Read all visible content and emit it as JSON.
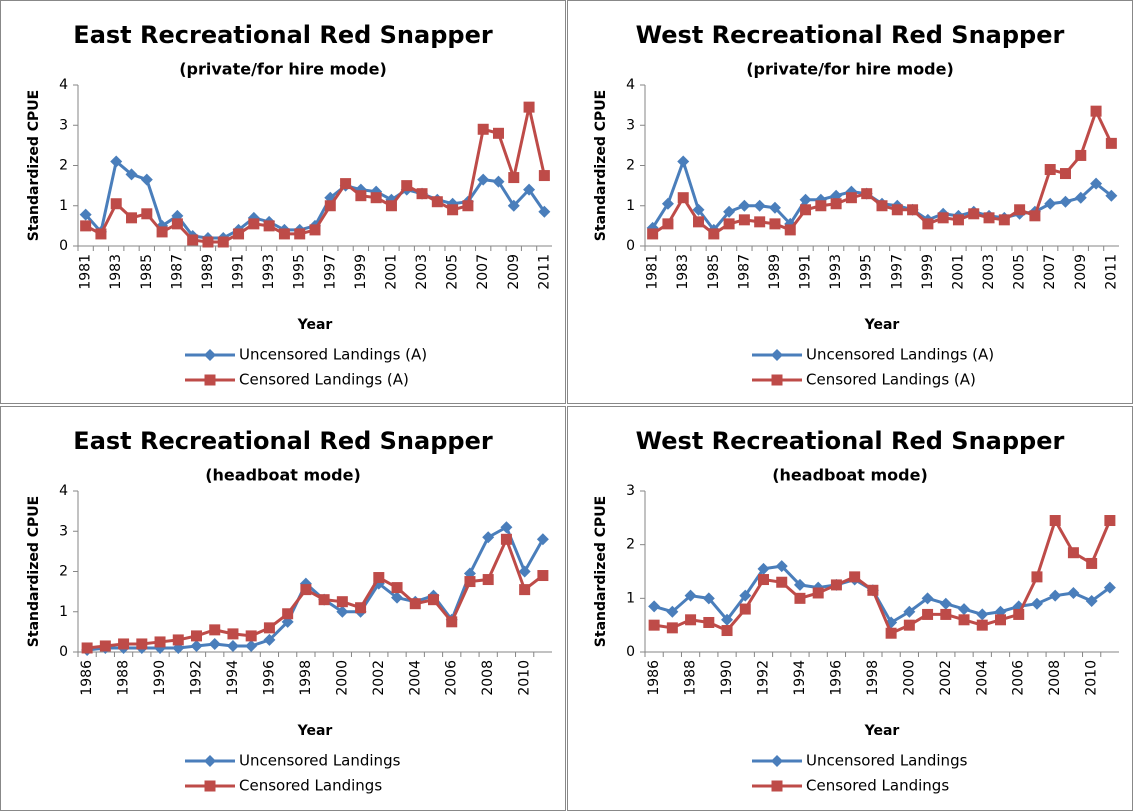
{
  "chart_data": [
    {
      "type": "line",
      "title": "East Recreational Red Snapper",
      "subtitle": "(private/for hire mode)",
      "y_label": "Standardized CPUE",
      "x_label": "Year",
      "categories": [
        "1981",
        null,
        "1983",
        null,
        "1985",
        null,
        "1987",
        null,
        "1989",
        null,
        "1991",
        null,
        "1993",
        null,
        "1995",
        null,
        "1997",
        null,
        "1999",
        null,
        "2001",
        null,
        "2003",
        null,
        "2005",
        null,
        "2007",
        null,
        "2009",
        null,
        "2011"
      ],
      "ylim": [
        0,
        4
      ],
      "yticks": [
        0,
        1,
        2,
        3,
        4
      ],
      "series": [
        {
          "name": "Uncensored Landings (A)",
          "color": "#4a7ebb",
          "marker": "diamond",
          "values": [
            0.78,
            0.35,
            2.1,
            1.78,
            1.65,
            0.5,
            0.75,
            0.25,
            0.2,
            0.2,
            0.4,
            0.7,
            0.6,
            0.4,
            0.4,
            0.5,
            1.2,
            1.5,
            1.4,
            1.35,
            1.15,
            1.4,
            1.3,
            1.15,
            1.05,
            1.1,
            1.65,
            1.6,
            1.0,
            1.4,
            0.85
          ]
        },
        {
          "name": "Censored Landings (A)",
          "color": "#be4b48",
          "marker": "square",
          "values": [
            0.5,
            0.3,
            1.05,
            0.7,
            0.8,
            0.35,
            0.55,
            0.15,
            0.1,
            0.1,
            0.3,
            0.55,
            0.5,
            0.3,
            0.3,
            0.4,
            1.0,
            1.55,
            1.25,
            1.2,
            1.0,
            1.5,
            1.3,
            1.1,
            0.9,
            1.0,
            2.9,
            2.8,
            1.7,
            3.45,
            1.75
          ]
        }
      ]
    },
    {
      "type": "line",
      "title": "West Recreational Red Snapper",
      "subtitle": "(private/for hire mode)",
      "y_label": "Standardized CPUE",
      "x_label": "Year",
      "categories": [
        "1981",
        null,
        "1983",
        null,
        "1985",
        null,
        "1987",
        null,
        "1989",
        null,
        "1991",
        null,
        "1993",
        null,
        "1995",
        null,
        "1997",
        null,
        "1999",
        null,
        "2001",
        null,
        "2003",
        null,
        "2005",
        null,
        "2007",
        null,
        "2009",
        null,
        "2011"
      ],
      "ylim": [
        0,
        4
      ],
      "yticks": [
        0,
        1,
        2,
        3,
        4
      ],
      "series": [
        {
          "name": "Uncensored Landings (A)",
          "color": "#4a7ebb",
          "marker": "diamond",
          "values": [
            0.45,
            1.05,
            2.1,
            0.9,
            0.4,
            0.85,
            1.0,
            1.0,
            0.95,
            0.55,
            1.15,
            1.15,
            1.25,
            1.35,
            1.3,
            1.05,
            1.0,
            0.9,
            0.65,
            0.8,
            0.75,
            0.85,
            0.75,
            0.7,
            0.8,
            0.85,
            1.05,
            1.1,
            1.2,
            1.55,
            1.25
          ]
        },
        {
          "name": "Censored Landings (A)",
          "color": "#be4b48",
          "marker": "square",
          "values": [
            0.3,
            0.55,
            1.2,
            0.6,
            0.3,
            0.55,
            0.65,
            0.6,
            0.55,
            0.4,
            0.9,
            1.0,
            1.05,
            1.2,
            1.3,
            1.0,
            0.9,
            0.9,
            0.55,
            0.7,
            0.65,
            0.8,
            0.7,
            0.65,
            0.9,
            0.75,
            1.9,
            1.8,
            2.25,
            3.35,
            2.55
          ]
        }
      ]
    },
    {
      "type": "line",
      "title": "East Recreational Red Snapper",
      "subtitle": "(headboat mode)",
      "y_label": "Standardized CPUE",
      "x_label": "Year",
      "categories": [
        "1986",
        null,
        "1988",
        null,
        "1990",
        null,
        "1992",
        null,
        "1994",
        null,
        "1996",
        null,
        "1998",
        null,
        "2000",
        null,
        "2002",
        null,
        "2004",
        null,
        "2006",
        null,
        "2008",
        null,
        "2010",
        null
      ],
      "ylim": [
        0,
        4
      ],
      "yticks": [
        0,
        1,
        2,
        3,
        4
      ],
      "series": [
        {
          "name": "Uncensored Landings",
          "color": "#4a7ebb",
          "marker": "diamond",
          "values": [
            0.05,
            0.1,
            0.1,
            0.1,
            0.1,
            0.1,
            0.15,
            0.2,
            0.15,
            0.15,
            0.3,
            0.75,
            1.7,
            1.3,
            1.0,
            1.0,
            1.7,
            1.35,
            1.25,
            1.4,
            0.8,
            1.95,
            2.85,
            3.1,
            2.0,
            2.8
          ]
        },
        {
          "name": "Censored Landings",
          "color": "#be4b48",
          "marker": "square",
          "values": [
            0.1,
            0.15,
            0.2,
            0.2,
            0.25,
            0.3,
            0.4,
            0.55,
            0.45,
            0.4,
            0.6,
            0.95,
            1.55,
            1.3,
            1.25,
            1.1,
            1.85,
            1.6,
            1.2,
            1.3,
            0.75,
            1.75,
            1.8,
            2.8,
            1.55,
            1.9
          ]
        }
      ]
    },
    {
      "type": "line",
      "title": "West Recreational Red Snapper",
      "subtitle": "(headboat mode)",
      "y_label": "Standardized CPUE",
      "x_label": "Year",
      "categories": [
        "1986",
        null,
        "1988",
        null,
        "1990",
        null,
        "1992",
        null,
        "1994",
        null,
        "1996",
        null,
        "1998",
        null,
        "2000",
        null,
        "2002",
        null,
        "2004",
        null,
        "2006",
        null,
        "2008",
        null,
        "2010",
        null
      ],
      "ylim": [
        0,
        3
      ],
      "yticks": [
        0,
        1,
        2,
        3
      ],
      "series": [
        {
          "name": "Uncensored Landings",
          "color": "#4a7ebb",
          "marker": "diamond",
          "values": [
            0.85,
            0.75,
            1.05,
            1.0,
            0.6,
            1.05,
            1.55,
            1.6,
            1.25,
            1.2,
            1.25,
            1.35,
            1.15,
            0.55,
            0.75,
            1.0,
            0.9,
            0.8,
            0.7,
            0.75,
            0.85,
            0.9,
            1.05,
            1.1,
            0.95,
            1.2
          ]
        },
        {
          "name": "Censored Landings",
          "color": "#be4b48",
          "marker": "square",
          "values": [
            0.5,
            0.45,
            0.6,
            0.55,
            0.4,
            0.8,
            1.35,
            1.3,
            1.0,
            1.1,
            1.25,
            1.4,
            1.15,
            0.35,
            0.5,
            0.7,
            0.7,
            0.6,
            0.5,
            0.6,
            0.7,
            1.4,
            2.45,
            1.85,
            1.65,
            2.45
          ]
        }
      ]
    }
  ]
}
